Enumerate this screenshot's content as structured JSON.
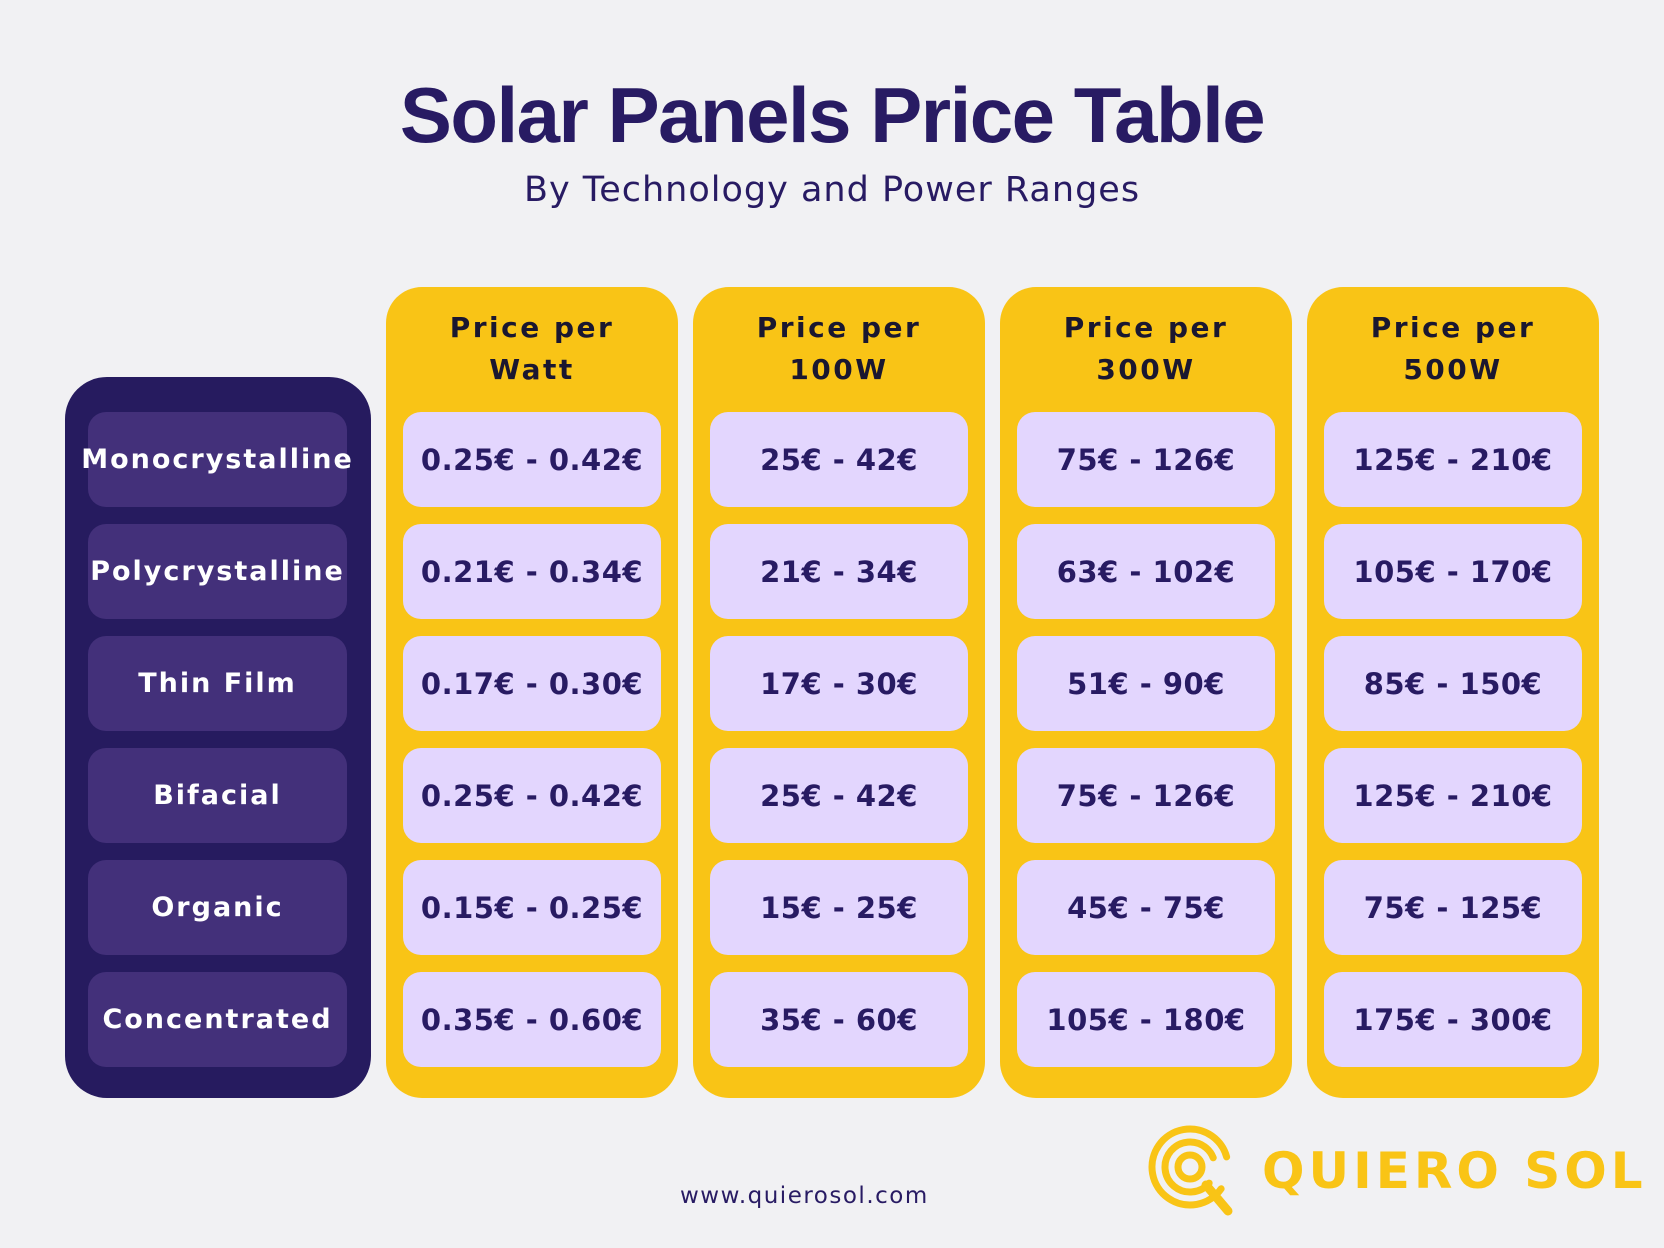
{
  "title": "Solar Panels Price Table",
  "subtitle": "By Technology and Power Ranges",
  "colors": {
    "background": "#f1f1f3",
    "navy": "#261b5f",
    "row_label_bg": "#43307a",
    "yellow": "#f9c416",
    "cell_bg": "#e3d6fe",
    "text_dark": "#281b63"
  },
  "table": {
    "rows": [
      "Monocrystalline",
      "Polycrystalline",
      "Thin Film",
      "Bifacial",
      "Organic",
      "Concentrated"
    ],
    "columns": [
      {
        "header": "Price per Watt",
        "values": [
          "0.25€ - 0.42€",
          "0.21€ - 0.34€",
          "0.17€ - 0.30€",
          "0.25€ - 0.42€",
          "0.15€ - 0.25€",
          "0.35€ - 0.60€"
        ]
      },
      {
        "header": "Price per 100W",
        "values": [
          "25€ - 42€",
          "21€ - 34€",
          "17€ - 30€",
          "25€ - 42€",
          "15€ - 25€",
          "35€ - 60€"
        ]
      },
      {
        "header": "Price per 300W",
        "values": [
          "75€ - 126€",
          "63€ - 102€",
          "51€ - 90€",
          "75€ - 126€",
          "45€ - 75€",
          "105€ - 180€"
        ]
      },
      {
        "header": "Price per 500W",
        "values": [
          "125€ - 210€",
          "105€ - 170€",
          "85€ - 150€",
          "125€ - 210€",
          "75€ - 125€",
          "175€ - 300€"
        ]
      }
    ]
  },
  "footer": {
    "website": "www.quierosol.com",
    "brand": "QUIERO SOL",
    "logo_icon": "quiero-sol-logo-icon"
  }
}
